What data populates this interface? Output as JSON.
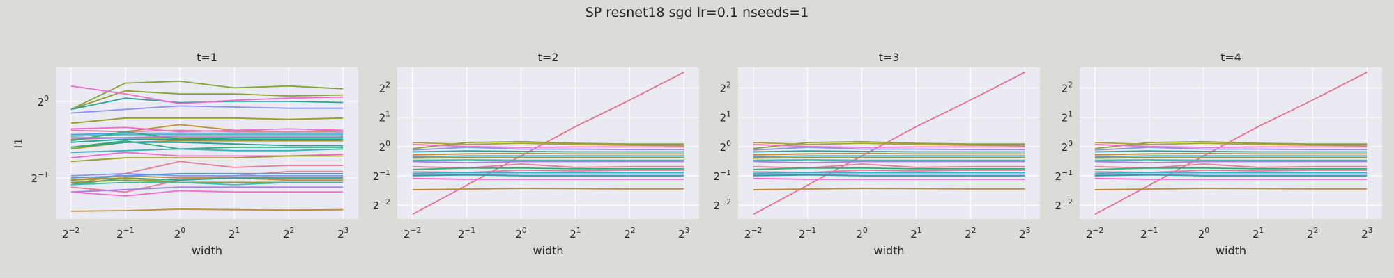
{
  "figure": {
    "suptitle": "SP resnet18 sgd lr=0.1 nseeds=1",
    "background": "#d9ddd6",
    "axes_bg": "#eaeaf2"
  },
  "chart_data": [
    {
      "type": "line",
      "title": "t=1",
      "xlabel": "width",
      "ylabel": "l1",
      "xscale": "log2",
      "yscale": "log2",
      "x": [
        0.25,
        0.5,
        1,
        2,
        4,
        8
      ],
      "x_tick_labels": [
        "2^-2",
        "2^-1",
        "2^0",
        "2^1",
        "2^2",
        "2^3"
      ],
      "ylim": [
        0.345,
        1.36
      ],
      "y_ticks": [
        0.5,
        1
      ],
      "y_tick_labels": [
        "2^-1",
        "2^0"
      ],
      "grid": true,
      "series": [
        {
          "color": "#8aa035",
          "values": [
            0.93,
            1.18,
            1.2,
            1.13,
            1.15,
            1.12
          ]
        },
        {
          "color": "#8aa035",
          "values": [
            0.93,
            1.1,
            1.07,
            1.07,
            1.05,
            1.06
          ]
        },
        {
          "color": "#2aa198",
          "values": [
            0.93,
            1.03,
            0.99,
            1.0,
            1.0,
            0.99
          ]
        },
        {
          "color": "#f06bd0",
          "values": [
            1.15,
            1.07,
            0.98,
            1.01,
            1.03,
            1.04
          ]
        },
        {
          "color": "#8b93e8",
          "values": [
            0.9,
            0.93,
            0.96,
            0.95,
            0.94,
            0.94
          ]
        },
        {
          "color": "#9a9a20",
          "values": [
            0.82,
            0.86,
            0.86,
            0.86,
            0.85,
            0.86
          ]
        },
        {
          "color": "#c48a30",
          "values": [
            0.7,
            0.76,
            0.81,
            0.77,
            0.76,
            0.77
          ]
        },
        {
          "color": "#f06bd0",
          "values": [
            0.78,
            0.79,
            0.76,
            0.77,
            0.78,
            0.77
          ]
        },
        {
          "color": "#e87a9a",
          "values": [
            0.77,
            0.76,
            0.77,
            0.76,
            0.76,
            0.76
          ]
        },
        {
          "color": "#4aa0e0",
          "values": [
            0.74,
            0.75,
            0.75,
            0.75,
            0.75,
            0.75
          ]
        },
        {
          "color": "#3cbfb0",
          "values": [
            0.73,
            0.74,
            0.74,
            0.74,
            0.74,
            0.74
          ]
        },
        {
          "color": "#9a9a20",
          "values": [
            0.71,
            0.72,
            0.72,
            0.72,
            0.72,
            0.72
          ]
        },
        {
          "color": "#2ab07a",
          "values": [
            0.7,
            0.76,
            0.71,
            0.72,
            0.72,
            0.72
          ]
        },
        {
          "color": "#a67fe0",
          "values": [
            0.72,
            0.72,
            0.73,
            0.73,
            0.73,
            0.73
          ]
        },
        {
          "color": "#1fa0a0",
          "values": [
            0.69,
            0.71,
            0.71,
            0.71,
            0.71,
            0.71
          ]
        },
        {
          "color": "#9a9a20",
          "values": [
            0.65,
            0.69,
            0.7,
            0.7,
            0.7,
            0.7
          ]
        },
        {
          "color": "#2aa198",
          "values": [
            0.66,
            0.69,
            0.69,
            0.68,
            0.67,
            0.67
          ]
        },
        {
          "color": "#2ab07a",
          "values": [
            0.66,
            0.7,
            0.65,
            0.66,
            0.66,
            0.66
          ]
        },
        {
          "color": "#3ab0c0",
          "values": [
            0.63,
            0.64,
            0.65,
            0.64,
            0.64,
            0.65
          ]
        },
        {
          "color": "#f06bd0",
          "values": [
            0.6,
            0.63,
            0.61,
            0.61,
            0.61,
            0.62
          ]
        },
        {
          "color": "#9a9a20",
          "values": [
            0.58,
            0.6,
            0.6,
            0.6,
            0.61,
            0.61
          ]
        },
        {
          "color": "#e87a9a",
          "values": [
            0.47,
            0.52,
            0.58,
            0.55,
            0.56,
            0.56
          ]
        },
        {
          "color": "#e87a9a",
          "values": [
            0.46,
            0.44,
            0.49,
            0.51,
            0.53,
            0.53
          ]
        },
        {
          "color": "#c48a30",
          "values": [
            0.49,
            0.51,
            0.5,
            0.5,
            0.49,
            0.49
          ]
        },
        {
          "color": "#8b93e8",
          "values": [
            0.51,
            0.52,
            0.51,
            0.51,
            0.51,
            0.51
          ]
        },
        {
          "color": "#4aa0e0",
          "values": [
            0.5,
            0.51,
            0.52,
            0.52,
            0.52,
            0.52
          ]
        },
        {
          "color": "#2aa198",
          "values": [
            0.47,
            0.5,
            0.49,
            0.5,
            0.5,
            0.5
          ]
        },
        {
          "color": "#9a9a20",
          "values": [
            0.49,
            0.5,
            0.48,
            0.48,
            0.48,
            0.48
          ]
        },
        {
          "color": "#8aa035",
          "values": [
            0.48,
            0.49,
            0.48,
            0.48,
            0.48,
            0.48
          ]
        },
        {
          "color": "#3cbfb0",
          "values": [
            0.47,
            0.48,
            0.48,
            0.47,
            0.48,
            0.48
          ]
        },
        {
          "color": "#a67fe0",
          "values": [
            0.44,
            0.45,
            0.46,
            0.46,
            0.46,
            0.46
          ]
        },
        {
          "color": "#f06bd0",
          "values": [
            0.44,
            0.425,
            0.445,
            0.44,
            0.44,
            0.44
          ]
        },
        {
          "color": "#c48a30",
          "values": [
            0.37,
            0.372,
            0.377,
            0.375,
            0.374,
            0.375
          ]
        }
      ]
    },
    {
      "type": "line",
      "title": "t=2",
      "xlabel": "width",
      "ylabel": "",
      "xscale": "log2",
      "yscale": "log2",
      "x": [
        0.25,
        0.5,
        1,
        2,
        4,
        8
      ],
      "x_tick_labels": [
        "2^-2",
        "2^-1",
        "2^0",
        "2^1",
        "2^2",
        "2^3"
      ],
      "ylim": [
        0.18,
        6.5
      ],
      "y_ticks": [
        0.25,
        0.5,
        1,
        2,
        4
      ],
      "y_tick_labels": [
        "2^-2",
        "2^-1",
        "2^0",
        "2^1",
        "2^2"
      ],
      "grid": true,
      "series": [
        {
          "color": "#f06a90",
          "values": [
            0.2,
            0.4,
            0.8,
            1.6,
            3.0,
            5.8
          ]
        },
        {
          "color": "#8aa035",
          "values": [
            0.95,
            1.1,
            1.12,
            1.08,
            1.06,
            1.06
          ]
        },
        {
          "color": "#b0a030",
          "values": [
            1.1,
            1.05,
            1.08,
            1.05,
            1.03,
            1.02
          ]
        },
        {
          "color": "#f06bd0",
          "values": [
            1.05,
            1.0,
            0.98,
            0.99,
            0.99,
            0.99
          ]
        },
        {
          "color": "#8b93e8",
          "values": [
            0.92,
            0.98,
            0.94,
            0.94,
            0.93,
            0.93
          ]
        },
        {
          "color": "#2aa198",
          "values": [
            0.88,
            0.9,
            0.89,
            0.88,
            0.88,
            0.88
          ]
        },
        {
          "color": "#c48a30",
          "values": [
            0.82,
            0.84,
            0.85,
            0.84,
            0.84,
            0.84
          ]
        },
        {
          "color": "#4aa0e0",
          "values": [
            0.78,
            0.8,
            0.8,
            0.8,
            0.8,
            0.8
          ]
        },
        {
          "color": "#9a9a20",
          "values": [
            0.76,
            0.77,
            0.77,
            0.77,
            0.77,
            0.77
          ]
        },
        {
          "color": "#3cbfb0",
          "values": [
            0.72,
            0.73,
            0.72,
            0.72,
            0.72,
            0.72
          ]
        },
        {
          "color": "#a67fe0",
          "values": [
            0.7,
            0.68,
            0.7,
            0.7,
            0.7,
            0.7
          ]
        },
        {
          "color": "#e87a9a",
          "values": [
            0.62,
            0.6,
            0.66,
            0.61,
            0.62,
            0.62
          ]
        },
        {
          "color": "#2ab07a",
          "values": [
            0.58,
            0.6,
            0.6,
            0.59,
            0.59,
            0.59
          ]
        },
        {
          "color": "#e87a9a",
          "values": [
            0.55,
            0.54,
            0.57,
            0.56,
            0.57,
            0.57
          ]
        },
        {
          "color": "#3ab0c0",
          "values": [
            0.53,
            0.54,
            0.54,
            0.54,
            0.54,
            0.54
          ]
        },
        {
          "color": "#8b93e8",
          "values": [
            0.51,
            0.52,
            0.52,
            0.52,
            0.52,
            0.52
          ]
        },
        {
          "color": "#2aa198",
          "values": [
            0.5,
            0.51,
            0.5,
            0.5,
            0.5,
            0.5
          ]
        },
        {
          "color": "#f06bd0",
          "values": [
            0.47,
            0.46,
            0.46,
            0.46,
            0.46,
            0.46
          ]
        },
        {
          "color": "#c48a30",
          "values": [
            0.36,
            0.365,
            0.37,
            0.368,
            0.366,
            0.366
          ]
        }
      ]
    },
    {
      "type": "line",
      "title": "t=3",
      "xlabel": "width",
      "ylabel": "",
      "xscale": "log2",
      "yscale": "log2",
      "x": [
        0.25,
        0.5,
        1,
        2,
        4,
        8
      ],
      "x_tick_labels": [
        "2^-2",
        "2^-1",
        "2^0",
        "2^1",
        "2^2",
        "2^3"
      ],
      "ylim": [
        0.18,
        6.5
      ],
      "y_ticks": [
        0.25,
        0.5,
        1,
        2,
        4
      ],
      "y_tick_labels": [
        "2^-2",
        "2^-1",
        "2^0",
        "2^1",
        "2^2"
      ],
      "grid": true,
      "series": [
        {
          "color": "#f06a90",
          "values": [
            0.2,
            0.4,
            0.8,
            1.6,
            3.0,
            5.8
          ]
        },
        {
          "color": "#8aa035",
          "values": [
            0.95,
            1.1,
            1.12,
            1.08,
            1.06,
            1.06
          ]
        },
        {
          "color": "#b0a030",
          "values": [
            1.1,
            1.05,
            1.08,
            1.05,
            1.03,
            1.02
          ]
        },
        {
          "color": "#f06bd0",
          "values": [
            1.05,
            1.0,
            0.98,
            0.99,
            0.99,
            0.99
          ]
        },
        {
          "color": "#8b93e8",
          "values": [
            0.92,
            0.98,
            0.94,
            0.94,
            0.93,
            0.93
          ]
        },
        {
          "color": "#2aa198",
          "values": [
            0.88,
            0.9,
            0.89,
            0.88,
            0.88,
            0.88
          ]
        },
        {
          "color": "#c48a30",
          "values": [
            0.82,
            0.84,
            0.85,
            0.84,
            0.84,
            0.84
          ]
        },
        {
          "color": "#4aa0e0",
          "values": [
            0.78,
            0.8,
            0.8,
            0.8,
            0.8,
            0.8
          ]
        },
        {
          "color": "#9a9a20",
          "values": [
            0.76,
            0.77,
            0.77,
            0.77,
            0.77,
            0.77
          ]
        },
        {
          "color": "#3cbfb0",
          "values": [
            0.72,
            0.73,
            0.72,
            0.72,
            0.72,
            0.72
          ]
        },
        {
          "color": "#a67fe0",
          "values": [
            0.7,
            0.68,
            0.7,
            0.7,
            0.7,
            0.7
          ]
        },
        {
          "color": "#e87a9a",
          "values": [
            0.62,
            0.6,
            0.66,
            0.61,
            0.62,
            0.62
          ]
        },
        {
          "color": "#2ab07a",
          "values": [
            0.58,
            0.6,
            0.6,
            0.59,
            0.59,
            0.59
          ]
        },
        {
          "color": "#e87a9a",
          "values": [
            0.55,
            0.54,
            0.57,
            0.56,
            0.57,
            0.57
          ]
        },
        {
          "color": "#3ab0c0",
          "values": [
            0.53,
            0.54,
            0.54,
            0.54,
            0.54,
            0.54
          ]
        },
        {
          "color": "#8b93e8",
          "values": [
            0.51,
            0.52,
            0.52,
            0.52,
            0.52,
            0.52
          ]
        },
        {
          "color": "#2aa198",
          "values": [
            0.5,
            0.51,
            0.5,
            0.5,
            0.5,
            0.5
          ]
        },
        {
          "color": "#f06bd0",
          "values": [
            0.47,
            0.46,
            0.46,
            0.46,
            0.46,
            0.46
          ]
        },
        {
          "color": "#c48a30",
          "values": [
            0.36,
            0.365,
            0.37,
            0.368,
            0.366,
            0.366
          ]
        }
      ]
    },
    {
      "type": "line",
      "title": "t=4",
      "xlabel": "width",
      "ylabel": "",
      "xscale": "log2",
      "yscale": "log2",
      "x": [
        0.25,
        0.5,
        1,
        2,
        4,
        8
      ],
      "x_tick_labels": [
        "2^-2",
        "2^-1",
        "2^0",
        "2^1",
        "2^2",
        "2^3"
      ],
      "ylim": [
        0.18,
        6.5
      ],
      "y_ticks": [
        0.25,
        0.5,
        1,
        2,
        4
      ],
      "y_tick_labels": [
        "2^-2",
        "2^-1",
        "2^0",
        "2^1",
        "2^2"
      ],
      "grid": true,
      "series": [
        {
          "color": "#f06a90",
          "values": [
            0.2,
            0.4,
            0.8,
            1.6,
            3.0,
            5.8
          ]
        },
        {
          "color": "#8aa035",
          "values": [
            0.95,
            1.1,
            1.12,
            1.08,
            1.06,
            1.06
          ]
        },
        {
          "color": "#b0a030",
          "values": [
            1.1,
            1.05,
            1.08,
            1.05,
            1.03,
            1.02
          ]
        },
        {
          "color": "#f06bd0",
          "values": [
            1.05,
            1.0,
            0.98,
            0.99,
            0.99,
            0.99
          ]
        },
        {
          "color": "#8b93e8",
          "values": [
            0.92,
            0.98,
            0.94,
            0.94,
            0.93,
            0.93
          ]
        },
        {
          "color": "#2aa198",
          "values": [
            0.88,
            0.9,
            0.89,
            0.88,
            0.88,
            0.88
          ]
        },
        {
          "color": "#c48a30",
          "values": [
            0.82,
            0.84,
            0.85,
            0.84,
            0.84,
            0.84
          ]
        },
        {
          "color": "#4aa0e0",
          "values": [
            0.78,
            0.8,
            0.8,
            0.8,
            0.8,
            0.8
          ]
        },
        {
          "color": "#9a9a20",
          "values": [
            0.76,
            0.77,
            0.77,
            0.77,
            0.77,
            0.77
          ]
        },
        {
          "color": "#3cbfb0",
          "values": [
            0.72,
            0.73,
            0.72,
            0.72,
            0.72,
            0.72
          ]
        },
        {
          "color": "#a67fe0",
          "values": [
            0.7,
            0.68,
            0.7,
            0.7,
            0.7,
            0.7
          ]
        },
        {
          "color": "#e87a9a",
          "values": [
            0.62,
            0.6,
            0.66,
            0.61,
            0.62,
            0.62
          ]
        },
        {
          "color": "#2ab07a",
          "values": [
            0.58,
            0.6,
            0.6,
            0.59,
            0.59,
            0.59
          ]
        },
        {
          "color": "#e87a9a",
          "values": [
            0.55,
            0.54,
            0.57,
            0.56,
            0.57,
            0.57
          ]
        },
        {
          "color": "#3ab0c0",
          "values": [
            0.53,
            0.54,
            0.54,
            0.54,
            0.54,
            0.54
          ]
        },
        {
          "color": "#8b93e8",
          "values": [
            0.51,
            0.52,
            0.52,
            0.52,
            0.52,
            0.52
          ]
        },
        {
          "color": "#2aa198",
          "values": [
            0.5,
            0.51,
            0.5,
            0.5,
            0.5,
            0.5
          ]
        },
        {
          "color": "#f06bd0",
          "values": [
            0.47,
            0.46,
            0.46,
            0.46,
            0.46,
            0.46
          ]
        },
        {
          "color": "#c48a30",
          "values": [
            0.36,
            0.365,
            0.37,
            0.368,
            0.366,
            0.366
          ]
        }
      ]
    }
  ]
}
